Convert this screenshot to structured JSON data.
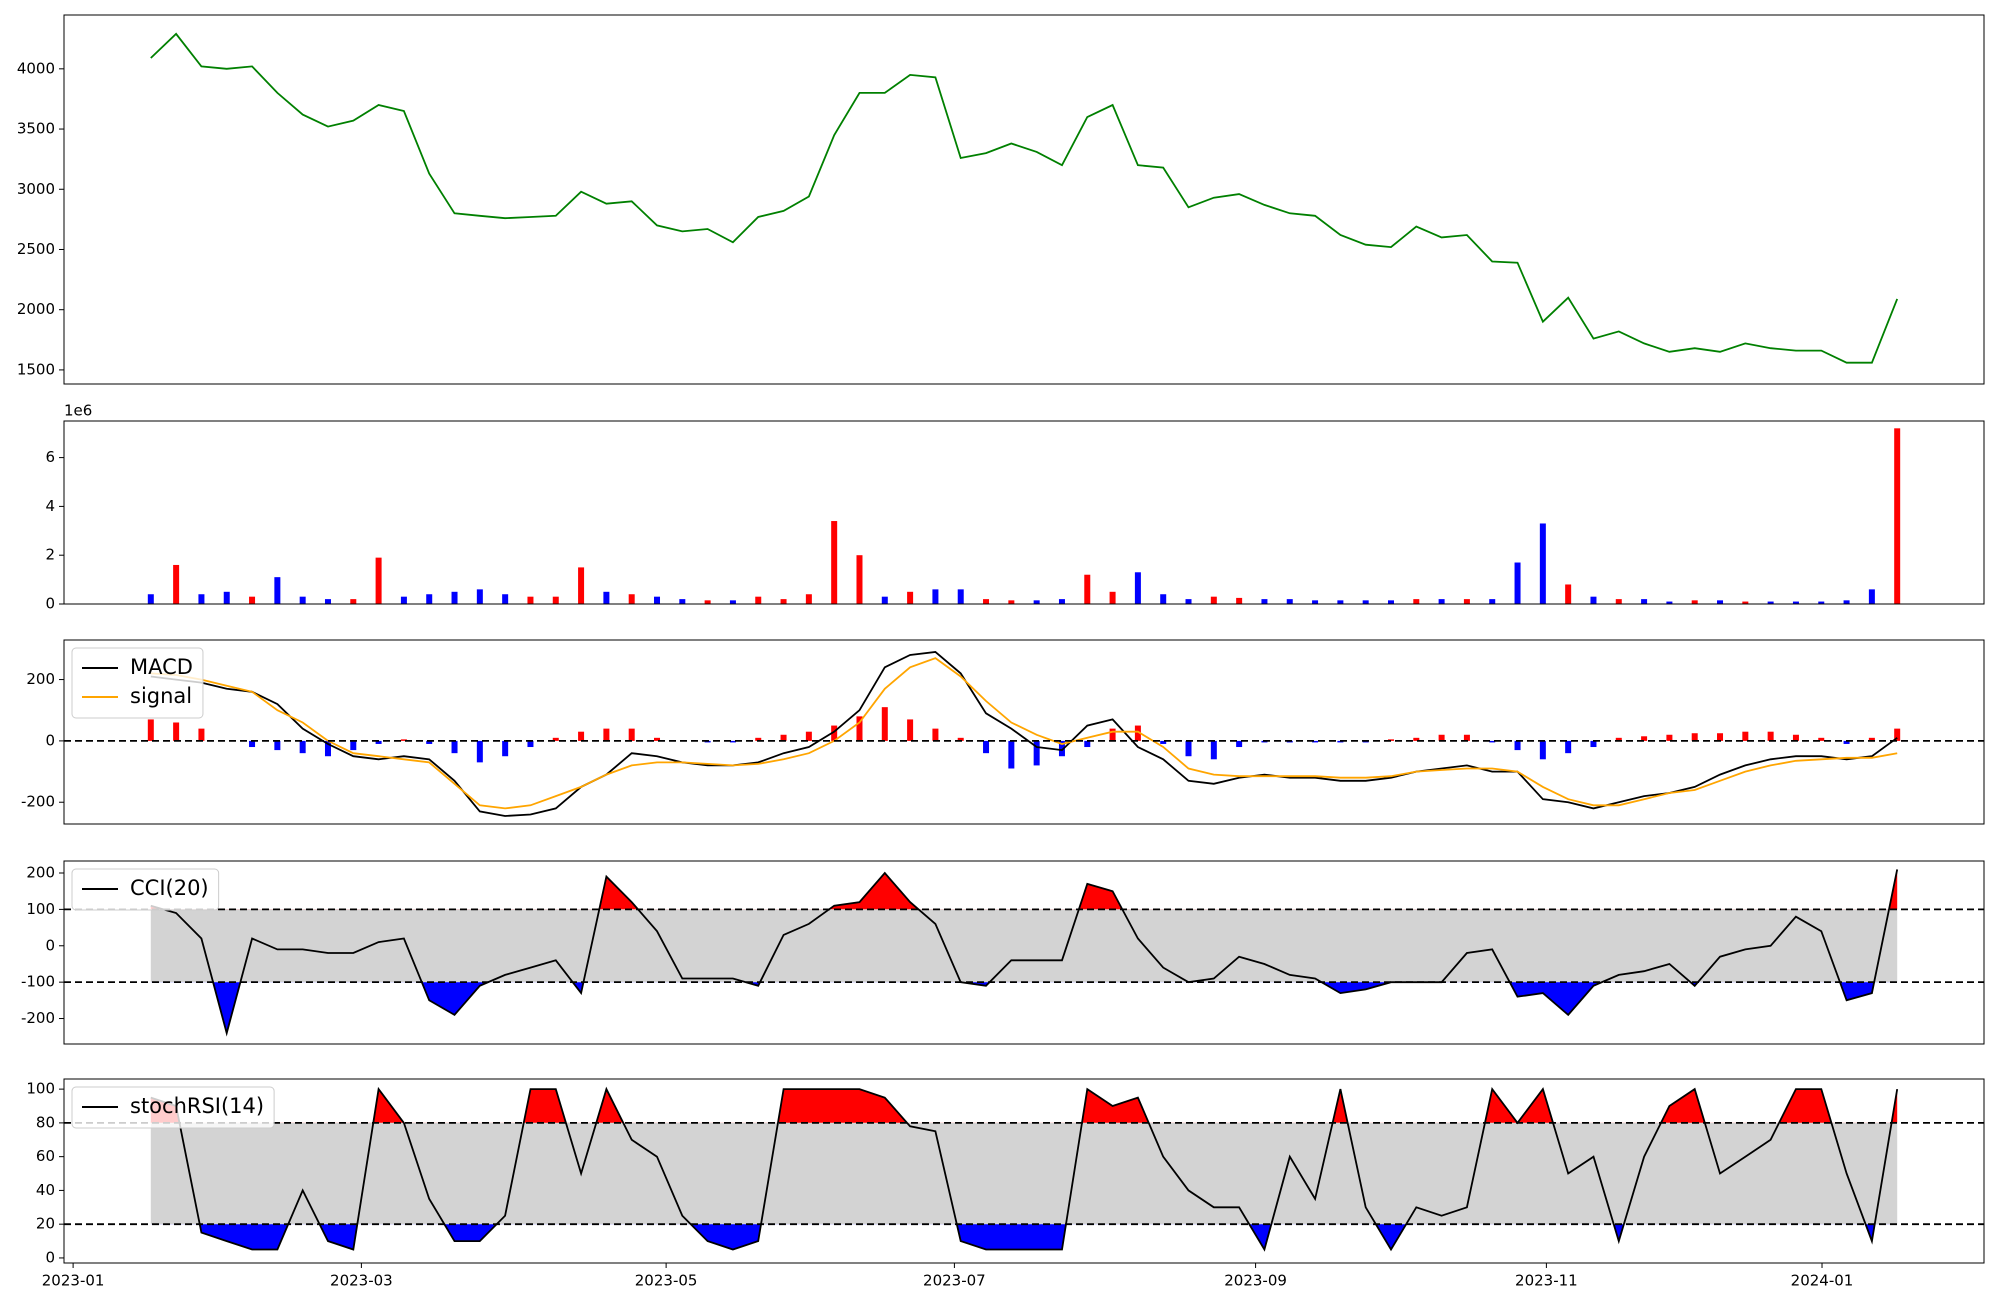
{
  "chart_data": [
    {
      "type": "line",
      "series": [
        {
          "color": "#008000",
          "values": [
            4090,
            4290,
            4020,
            4000,
            4020,
            3800,
            3620,
            3520,
            3570,
            3700,
            3650,
            3130,
            2800,
            2780,
            2760,
            2770,
            2780,
            2980,
            2880,
            2900,
            2700,
            2650,
            2670,
            2560,
            2770,
            2820,
            2940,
            3450,
            3800,
            3800,
            3950,
            3930,
            3260,
            3300,
            3380,
            3310,
            3200,
            3600,
            3700,
            3200,
            3180,
            2850,
            2930,
            2960,
            2870,
            2800,
            2780,
            2620,
            2540,
            2520,
            2690,
            2600,
            2620,
            2400,
            2390,
            1900,
            2100,
            1760,
            1820,
            1720,
            1650,
            1680,
            1650,
            1720,
            1680,
            1660,
            1660,
            1560,
            1560,
            2090
          ]
        }
      ],
      "ylim": [
        1383,
        4447
      ],
      "yticks": [
        1500,
        2000,
        2500,
        3000,
        3500,
        4000
      ]
    },
    {
      "type": "bar",
      "offset_label": "1e6",
      "values": [
        0.4,
        1.6,
        0.4,
        0.5,
        0.3,
        1.1,
        0.3,
        0.2,
        0.2,
        1.9,
        0.3,
        0.4,
        0.5,
        0.6,
        0.4,
        0.3,
        0.3,
        1.5,
        0.5,
        0.4,
        0.3,
        0.2,
        0.15,
        0.15,
        0.3,
        0.2,
        0.4,
        3.4,
        2.0,
        0.3,
        0.5,
        0.6,
        0.6,
        0.2,
        0.15,
        0.15,
        0.2,
        1.2,
        0.5,
        1.3,
        0.4,
        0.2,
        0.3,
        0.25,
        0.2,
        0.2,
        0.15,
        0.15,
        0.15,
        0.15,
        0.2,
        0.2,
        0.2,
        0.2,
        1.7,
        3.3,
        0.8,
        0.3,
        0.2,
        0.2,
        0.1,
        0.15,
        0.15,
        0.1,
        0.1,
        0.1,
        0.1,
        0.15,
        0.6,
        7.2
      ],
      "up_color": "red",
      "down_color": "blue",
      "ylim": [
        0,
        7.5
      ],
      "yticks": [
        0,
        2,
        4,
        6
      ]
    },
    {
      "type": "macd",
      "legend": "upper left",
      "series": [
        {
          "name": "MACD",
          "color": "black",
          "values": [
            210,
            200,
            190,
            170,
            160,
            120,
            40,
            -10,
            -50,
            -60,
            -50,
            -60,
            -130,
            -230,
            -245,
            -240,
            -220,
            -150,
            -110,
            -40,
            -50,
            -70,
            -80,
            -80,
            -70,
            -40,
            -20,
            30,
            100,
            240,
            280,
            290,
            220,
            90,
            40,
            -20,
            -30,
            50,
            70,
            -20,
            -60,
            -130,
            -140,
            -120,
            -110,
            -120,
            -120,
            -130,
            -130,
            -120,
            -100,
            -90,
            -80,
            -100,
            -100,
            -190,
            -200,
            -220,
            -200,
            -180,
            -170,
            -150,
            -110,
            -80,
            -60,
            -50,
            -50,
            -60,
            -50,
            10
          ]
        },
        {
          "name": "signal",
          "color": "orange",
          "values": [
            220,
            215,
            200,
            180,
            160,
            100,
            60,
            0,
            -40,
            -50,
            -60,
            -70,
            -140,
            -210,
            -220,
            -210,
            -180,
            -150,
            -110,
            -80,
            -70,
            -70,
            -75,
            -80,
            -75,
            -60,
            -40,
            0,
            60,
            170,
            240,
            270,
            210,
            130,
            60,
            20,
            -10,
            10,
            30,
            30,
            -20,
            -90,
            -110,
            -115,
            -115,
            -115,
            -115,
            -120,
            -120,
            -115,
            -100,
            -95,
            -90,
            -90,
            -100,
            -150,
            -190,
            -210,
            -210,
            -190,
            -170,
            -160,
            -130,
            -100,
            -80,
            -65,
            -60,
            -55,
            -55,
            -40
          ]
        }
      ],
      "histogram": {
        "up_color": "red",
        "down_color": "blue",
        "values": [
          70,
          60,
          40,
          0,
          -20,
          -30,
          -40,
          -50,
          -30,
          -10,
          5,
          -10,
          -40,
          -70,
          -50,
          -20,
          10,
          30,
          40,
          40,
          10,
          0,
          -5,
          -5,
          10,
          20,
          30,
          50,
          80,
          110,
          70,
          40,
          10,
          -40,
          -90,
          -80,
          -50,
          -20,
          40,
          50,
          -10,
          -50,
          -60,
          -20,
          -5,
          -5,
          -5,
          -5,
          -5,
          5,
          10,
          20,
          20,
          -5,
          -30,
          -60,
          -40,
          -20,
          10,
          15,
          20,
          25,
          25,
          30,
          30,
          20,
          10,
          -10,
          10,
          40
        ]
      },
      "reference_lines": [
        0
      ],
      "ylim": [
        -271,
        329
      ],
      "yticks": [
        -200,
        0,
        200
      ]
    },
    {
      "type": "oscillator",
      "legend": "upper left",
      "series": [
        {
          "name": "CCI(20)",
          "color": "black",
          "values": [
            110,
            90,
            20,
            -240,
            20,
            -10,
            -10,
            -20,
            -20,
            10,
            20,
            -150,
            -190,
            -110,
            -80,
            -60,
            -40,
            -130,
            190,
            120,
            40,
            -90,
            -90,
            -90,
            -110,
            30,
            60,
            110,
            120,
            200,
            120,
            60,
            -100,
            -110,
            -40,
            -40,
            -40,
            170,
            150,
            20,
            -60,
            -100,
            -90,
            -30,
            -50,
            -80,
            -90,
            -130,
            -120,
            -100,
            -100,
            -100,
            -20,
            -10,
            -140,
            -130,
            -190,
            -110,
            -80,
            -70,
            -50,
            -110,
            -30,
            -10,
            0,
            80,
            40,
            -150,
            -130,
            210
          ]
        }
      ],
      "reference_lines": [
        -100,
        100
      ],
      "band_color": "#d3d3d3",
      "above_color": "red",
      "below_color": "blue",
      "ylim": [
        -270,
        233
      ],
      "yticks": [
        -200,
        -100,
        0,
        100,
        200
      ]
    },
    {
      "type": "oscillator",
      "legend": "upper left",
      "series": [
        {
          "name": "stochRSI(14)",
          "color": "black",
          "values": [
            95,
            90,
            15,
            10,
            5,
            5,
            40,
            10,
            5,
            100,
            80,
            35,
            10,
            10,
            25,
            100,
            100,
            50,
            100,
            70,
            60,
            25,
            10,
            5,
            10,
            100,
            100,
            100,
            100,
            95,
            78,
            75,
            10,
            5,
            5,
            5,
            5,
            100,
            90,
            95,
            60,
            40,
            30,
            30,
            5,
            60,
            35,
            100,
            30,
            5,
            30,
            25,
            30,
            100,
            80,
            100,
            50,
            60,
            10,
            60,
            90,
            100,
            50,
            60,
            70,
            100,
            100,
            50,
            10,
            100
          ]
        }
      ],
      "reference_lines": [
        20,
        80
      ],
      "band_color": "#d3d3d3",
      "above_color": "red",
      "below_color": "blue",
      "ylim": [
        -3,
        106
      ],
      "yticks": [
        0,
        20,
        40,
        60,
        80,
        100
      ],
      "xlim": [
        -3.43,
        72.43
      ],
      "xticks": [
        {
          "value": -3.07,
          "label": "2023-01"
        },
        {
          "value": 8.32,
          "label": "2023-03"
        },
        {
          "value": 20.36,
          "label": "2023-05"
        },
        {
          "value": 31.75,
          "label": "2023-07"
        },
        {
          "value": 43.65,
          "label": "2023-09"
        },
        {
          "value": 55.14,
          "label": "2023-11"
        },
        {
          "value": 66.03,
          "label": "2024-01"
        }
      ]
    }
  ]
}
